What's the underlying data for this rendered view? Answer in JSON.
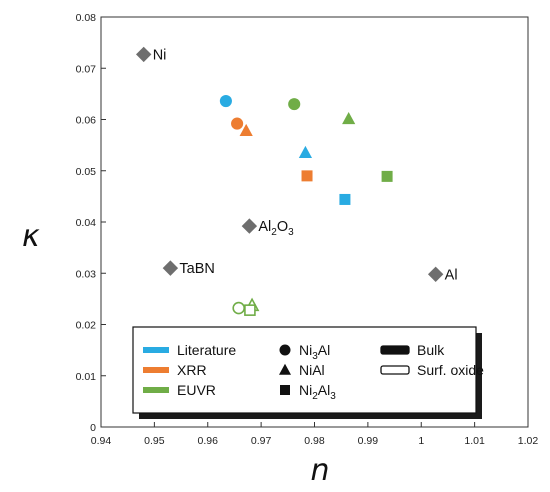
{
  "chart_data": {
    "type": "scatter",
    "xlabel": "n",
    "ylabel": "κ",
    "xlim": [
      0.94,
      1.02
    ],
    "ylim": [
      0,
      0.08
    ],
    "x_ticks": [
      "0.94",
      "0.95",
      "0.96",
      "0.97",
      "0.98",
      "0.99",
      "1",
      "1.01",
      "1.02"
    ],
    "y_ticks": [
      "0",
      "0.01",
      "0.02",
      "0.03",
      "0.04",
      "0.05",
      "0.06",
      "0.07",
      "0.08"
    ],
    "grid": false,
    "colors": {
      "Literature": "#29abe2",
      "XRR": "#ed7d31",
      "EUVR": "#70ad47",
      "reference": "#6e6e6e"
    },
    "reference_points": [
      {
        "label": "Ni",
        "x": 0.948,
        "y": 0.0727
      },
      {
        "label_parts": [
          "Al",
          "2",
          "O",
          "3"
        ],
        "x": 0.9678,
        "y": 0.0392
      },
      {
        "label": "TaBN",
        "x": 0.953,
        "y": 0.031
      },
      {
        "label": "Al",
        "x": 1.0027,
        "y": 0.0298
      }
    ],
    "series": [
      {
        "source": "Literature",
        "compound": "Ni3Al",
        "form": "Bulk",
        "x": 0.9634,
        "y": 0.0636
      },
      {
        "source": "XRR",
        "compound": "Ni3Al",
        "form": "Bulk",
        "x": 0.9655,
        "y": 0.0592
      },
      {
        "source": "EUVR",
        "compound": "Ni3Al",
        "form": "Bulk",
        "x": 0.9762,
        "y": 0.063
      },
      {
        "source": "XRR",
        "compound": "NiAl",
        "form": "Bulk",
        "x": 0.9672,
        "y": 0.0578
      },
      {
        "source": "Literature",
        "compound": "NiAl",
        "form": "Bulk",
        "x": 0.9783,
        "y": 0.0535
      },
      {
        "source": "EUVR",
        "compound": "NiAl",
        "form": "Bulk",
        "x": 0.9864,
        "y": 0.0601
      },
      {
        "source": "XRR",
        "compound": "Ni2Al3",
        "form": "Bulk",
        "x": 0.9786,
        "y": 0.049
      },
      {
        "source": "Literature",
        "compound": "Ni2Al3",
        "form": "Bulk",
        "x": 0.9857,
        "y": 0.0444
      },
      {
        "source": "EUVR",
        "compound": "Ni2Al3",
        "form": "Bulk",
        "x": 0.9936,
        "y": 0.0489
      },
      {
        "source": "EUVR",
        "compound": "Ni3Al",
        "form": "Surf. oxide",
        "x": 0.9658,
        "y": 0.0232
      },
      {
        "source": "EUVR",
        "compound": "NiAl",
        "form": "Surf. oxide",
        "x": 0.9683,
        "y": 0.0237
      },
      {
        "source": "EUVR",
        "compound": "Ni2Al3",
        "form": "Surf. oxide",
        "x": 0.9679,
        "y": 0.0228
      }
    ],
    "legend": {
      "placement": "bottom-center",
      "sources": [
        "Literature",
        "XRR",
        "EUVR"
      ],
      "compounds": [
        {
          "marker": "circle",
          "parts": [
            "Ni",
            "3",
            "Al"
          ]
        },
        {
          "marker": "triangle",
          "parts": [
            "NiAl"
          ]
        },
        {
          "marker": "square",
          "parts": [
            "Ni",
            "2",
            "Al",
            "3"
          ]
        }
      ],
      "forms": [
        "Bulk",
        "Surf. oxide"
      ]
    }
  }
}
